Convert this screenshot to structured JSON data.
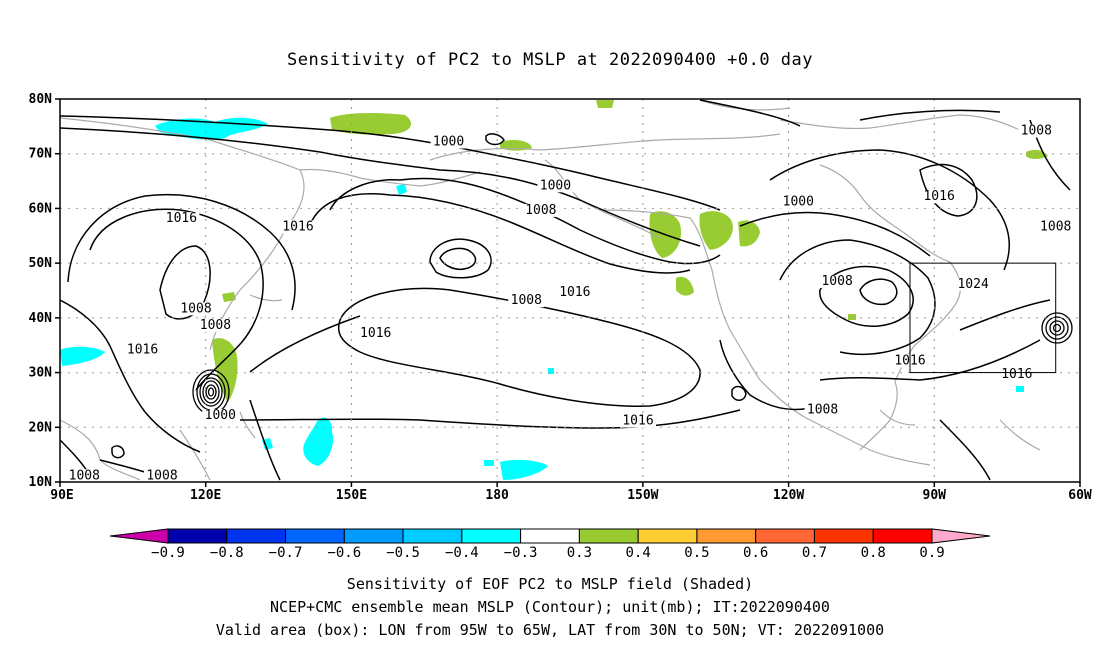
{
  "title": "Sensitivity of PC2 to MSLP at 2022090400 +0.0 day",
  "map": {
    "lat_labels": [
      "80N",
      "70N",
      "60N",
      "50N",
      "40N",
      "30N",
      "20N",
      "10N"
    ],
    "lon_labels": [
      "90E",
      "120E",
      "150E",
      "180",
      "150W",
      "120W",
      "90W",
      "60W"
    ],
    "contour_labels": [
      {
        "text": "1000",
        "lon": 170,
        "lat": 71.5
      },
      {
        "text": "1008",
        "lon": -69,
        "lat": 73.5
      },
      {
        "text": "1000",
        "lon": 192,
        "lat": 63.5
      },
      {
        "text": "1016",
        "lon": 115,
        "lat": 57.5
      },
      {
        "text": "1016",
        "lon": 139,
        "lat": 56
      },
      {
        "text": "1008",
        "lon": 189,
        "lat": 59
      },
      {
        "text": "1000",
        "lon": -118,
        "lat": 60.5
      },
      {
        "text": "1016",
        "lon": -89,
        "lat": 61.5
      },
      {
        "text": "1008",
        "lon": -65,
        "lat": 56
      },
      {
        "text": "1008",
        "lon": 186,
        "lat": 42.5
      },
      {
        "text": "1016",
        "lon": 196,
        "lat": 44
      },
      {
        "text": "1008",
        "lon": -110,
        "lat": 46
      },
      {
        "text": "1024",
        "lon": -82,
        "lat": 45.5
      },
      {
        "text": "1008",
        "lon": 118,
        "lat": 41
      },
      {
        "text": "1008",
        "lon": 122,
        "lat": 38
      },
      {
        "text": "1016",
        "lon": 107,
        "lat": 33.5
      },
      {
        "text": "1016",
        "lon": 155,
        "lat": 36.5
      },
      {
        "text": "1016",
        "lon": -95,
        "lat": 31.5
      },
      {
        "text": "1016",
        "lon": -73,
        "lat": 29
      },
      {
        "text": "1000",
        "lon": 123,
        "lat": 21.5
      },
      {
        "text": "1008",
        "lon": -113,
        "lat": 22.5
      },
      {
        "text": "1016",
        "lon": -151,
        "lat": 20.5
      },
      {
        "text": "1008",
        "lon": 95,
        "lat": 10.5
      },
      {
        "text": "1008",
        "lon": 111,
        "lat": 10.5
      }
    ],
    "valid_box": {
      "lon_min": -95,
      "lon_max": -65,
      "lat_min": 30,
      "lat_max": 50
    },
    "colors": {
      "positive_shade": "#99cc33",
      "negative_shade": "#00ffff",
      "coast": "#aaaaaa",
      "grid": "#999999"
    }
  },
  "colorbar": {
    "labels": [
      "−0.9",
      "−0.8",
      "−0.7",
      "−0.6",
      "−0.5",
      "−0.4",
      "−0.3",
      "0.3",
      "0.4",
      "0.5",
      "0.6",
      "0.7",
      "0.8",
      "0.9"
    ],
    "colors": [
      "#0000aa",
      "#0033ee",
      "#0066ff",
      "#0099ff",
      "#00ccff",
      "#00ffff",
      "#ffffff",
      "#99cc33",
      "#ffcc33",
      "#ff9933",
      "#ff6633",
      "#ff3300",
      "#ff0000"
    ],
    "low_end_color": "#cc00aa",
    "high_end_color": "#ffaacc"
  },
  "captions": [
    "Sensitivity of EOF PC2 to MSLP field (Shaded)",
    "NCEP+CMC ensemble mean MSLP (Contour); unit(mb); IT:2022090400",
    "Valid area (box): LON from 95W to 65W, LAT from 30N to 50N; VT: 2022091000"
  ]
}
